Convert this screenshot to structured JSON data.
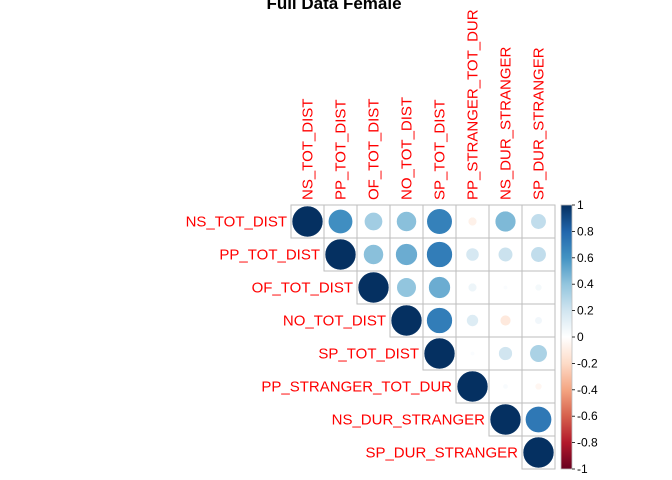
{
  "chart_data": {
    "type": "heatmap",
    "title": "Full Data Female",
    "variables": [
      "NS_TOT_DIST",
      "PP_TOT_DIST",
      "OF_TOT_DIST",
      "NO_TOT_DIST",
      "SP_TOT_DIST",
      "PP_STRANGER_TOT_DUR",
      "NS_DUR_STRANGER",
      "SP_DUR_STRANGER"
    ],
    "matrix": [
      [
        1.0,
        0.62,
        0.35,
        0.42,
        0.68,
        -0.08,
        0.45,
        0.25
      ],
      [
        0.62,
        1.0,
        0.42,
        0.5,
        0.7,
        0.18,
        0.22,
        0.25
      ],
      [
        0.35,
        0.42,
        1.0,
        0.4,
        0.5,
        0.08,
        0.02,
        0.05
      ],
      [
        0.42,
        0.5,
        0.4,
        1.0,
        0.7,
        0.15,
        -0.12,
        0.06
      ],
      [
        0.68,
        0.7,
        0.5,
        0.7,
        1.0,
        0.02,
        0.2,
        0.32
      ],
      [
        -0.08,
        0.18,
        0.08,
        0.15,
        0.02,
        1.0,
        0.03,
        -0.05
      ],
      [
        0.45,
        0.22,
        0.02,
        -0.12,
        0.2,
        0.03,
        1.0,
        0.72
      ],
      [
        0.25,
        0.25,
        0.05,
        0.06,
        0.32,
        -0.05,
        0.72,
        1.0
      ]
    ],
    "layout": "upper",
    "method": "circle",
    "colorbar": {
      "ticks": [
        "-1",
        "-0.8",
        "-0.6",
        "-0.4",
        "-0.2",
        "0",
        "0.2",
        "0.4",
        "0.6",
        "0.8",
        "1"
      ],
      "range": [
        -1,
        1
      ],
      "colors": [
        "#67001f",
        "#b2182b",
        "#d6604d",
        "#f4a582",
        "#fddbc7",
        "#ffffff",
        "#d1e5f0",
        "#92c5de",
        "#4393c3",
        "#2166ac",
        "#053061"
      ]
    },
    "label_color": "#ff0000",
    "grid_color": "#bebebe"
  }
}
